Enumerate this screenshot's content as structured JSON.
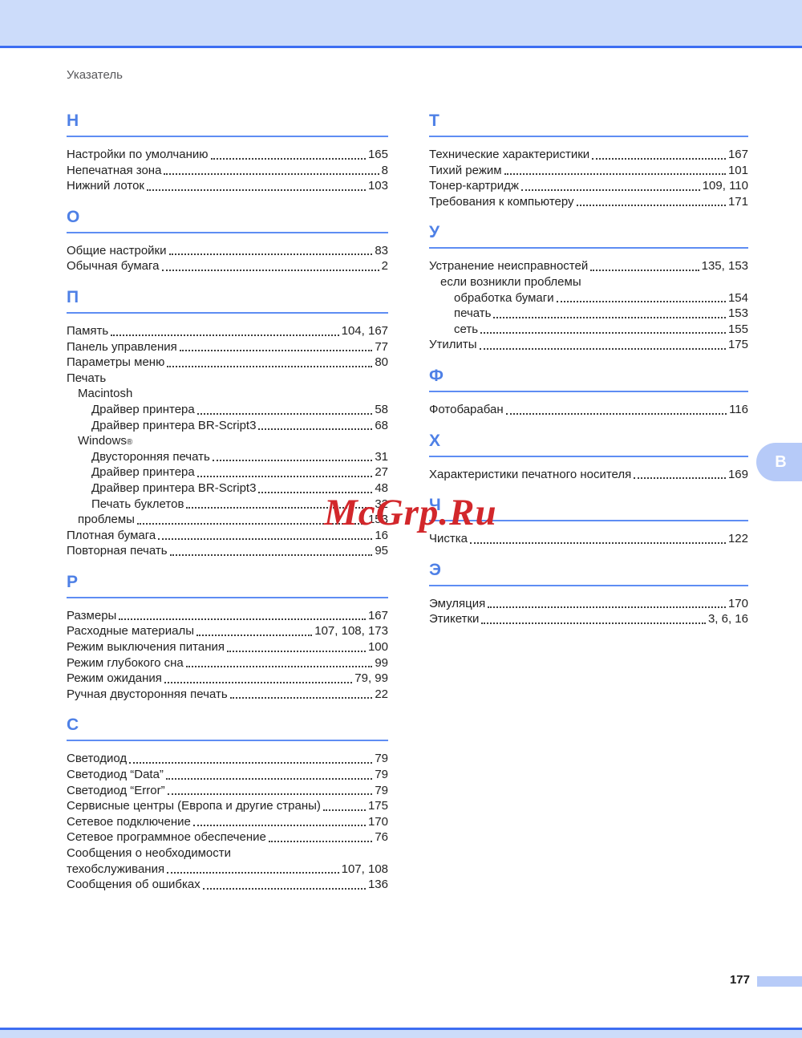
{
  "page": {
    "running_head": "Указатель",
    "page_number": "177",
    "side_tab_label": "В",
    "watermark": "McGrp.Ru"
  },
  "colors": {
    "band_blue": "#ccdcfa",
    "rule_blue": "#3d6ef2",
    "heading_blue": "#4e80e6",
    "tab_blue": "#b6caf8",
    "watermark_red": "#d2272b",
    "text": "#222222"
  },
  "index": {
    "left_column": [
      {
        "letter": "Н",
        "entries": [
          {
            "label": "Настройки по умолчанию",
            "pages": "165",
            "indent": 0
          },
          {
            "label": "Непечатная зона",
            "pages": "8",
            "indent": 0
          },
          {
            "label": "Нижний лоток",
            "pages": "103",
            "indent": 0
          }
        ]
      },
      {
        "letter": "О",
        "entries": [
          {
            "label": "Общие настройки",
            "pages": "83",
            "indent": 0
          },
          {
            "label": "Обычная бумага",
            "pages": "2",
            "indent": 0
          }
        ]
      },
      {
        "letter": "П",
        "entries": [
          {
            "label": "Память",
            "pages": "104, 167",
            "indent": 0
          },
          {
            "label": "Панель управления",
            "pages": "77",
            "indent": 0
          },
          {
            "label": "Параметры меню",
            "pages": "80",
            "indent": 0
          },
          {
            "label": "Печать",
            "pages": "",
            "indent": 0
          },
          {
            "label": "Macintosh",
            "pages": "",
            "indent": 1
          },
          {
            "label": "Драйвер принтера",
            "pages": "58",
            "indent": 2
          },
          {
            "label": "Драйвер принтера BR-Script3",
            "pages": "68",
            "indent": 2
          },
          {
            "label": "Windows",
            "sup": "®",
            "pages": "",
            "indent": 1
          },
          {
            "label": "Двусторонняя печать",
            "pages": "31",
            "indent": 2
          },
          {
            "label": "Драйвер принтера",
            "pages": "27",
            "indent": 2
          },
          {
            "label": "Драйвер принтера BR-Script3",
            "pages": "48",
            "indent": 2
          },
          {
            "label": "Печать буклетов",
            "pages": "32",
            "indent": 2
          },
          {
            "label": "проблемы",
            "pages": "153",
            "indent": 1
          },
          {
            "label": "Плотная бумага",
            "pages": "16",
            "indent": 0
          },
          {
            "label": "Повторная печать",
            "pages": "95",
            "indent": 0
          }
        ]
      },
      {
        "letter": "Р",
        "entries": [
          {
            "label": "Размеры",
            "pages": "167",
            "indent": 0
          },
          {
            "label": "Расходные материалы",
            "pages": "107, 108, 173",
            "indent": 0
          },
          {
            "label": "Режим выключения питания",
            "pages": "100",
            "indent": 0
          },
          {
            "label": "Режим глубокого сна",
            "pages": "99",
            "indent": 0
          },
          {
            "label": "Режим ожидания",
            "pages": "79, 99",
            "indent": 0
          },
          {
            "label": "Ручная двусторонняя печать",
            "pages": "22",
            "indent": 0
          }
        ]
      },
      {
        "letter": "С",
        "entries": [
          {
            "label": "Светодиод",
            "pages": "79",
            "indent": 0
          },
          {
            "label": "Светодиод “Data”",
            "pages": "79",
            "indent": 0
          },
          {
            "label": "Светодиод “Error”",
            "pages": "79",
            "indent": 0
          },
          {
            "label": "Сервисные центры (Европа и другие страны)",
            "pages": "175",
            "indent": 0
          },
          {
            "label": "Сетевое подключение",
            "pages": "170",
            "indent": 0
          },
          {
            "label": "Сетевое программное обеспечение",
            "pages": "76",
            "indent": 0
          },
          {
            "label": "Сообщения о необходимости",
            "pages": "",
            "indent": 0
          },
          {
            "label": "техобслуживания",
            "pages": "107, 108",
            "indent": 0
          },
          {
            "label": "Сообщения об ошибках",
            "pages": "136",
            "indent": 0
          }
        ]
      }
    ],
    "right_column": [
      {
        "letter": "Т",
        "entries": [
          {
            "label": "Технические характеристики",
            "pages": "167",
            "indent": 0
          },
          {
            "label": "Тихий режим",
            "pages": "101",
            "indent": 0
          },
          {
            "label": "Тонер-картридж",
            "pages": "109, 110",
            "indent": 0
          },
          {
            "label": "Требования к компьютеру",
            "pages": "171",
            "indent": 0
          }
        ]
      },
      {
        "letter": "У",
        "entries": [
          {
            "label": "Устранение неисправностей",
            "pages": "135, 153",
            "indent": 0
          },
          {
            "label": "если возникли проблемы",
            "pages": "",
            "indent": 1
          },
          {
            "label": "обработка бумаги",
            "pages": "154",
            "indent": 2
          },
          {
            "label": "печать",
            "pages": "153",
            "indent": 2
          },
          {
            "label": "сеть",
            "pages": "155",
            "indent": 2
          },
          {
            "label": "Утилиты",
            "pages": "175",
            "indent": 0
          }
        ]
      },
      {
        "letter": "Ф",
        "entries": [
          {
            "label": "Фотобарабан",
            "pages": "116",
            "indent": 0
          }
        ]
      },
      {
        "letter": "Х",
        "entries": [
          {
            "label": "Характеристики печатного носителя",
            "pages": "169",
            "indent": 0
          }
        ]
      },
      {
        "letter": "Ч",
        "entries": [
          {
            "label": "Чистка",
            "pages": "122",
            "indent": 0
          }
        ]
      },
      {
        "letter": "Э",
        "entries": [
          {
            "label": "Эмуляция",
            "pages": "170",
            "indent": 0
          },
          {
            "label": "Этикетки",
            "pages": "3, 6, 16",
            "indent": 0
          }
        ]
      }
    ]
  }
}
